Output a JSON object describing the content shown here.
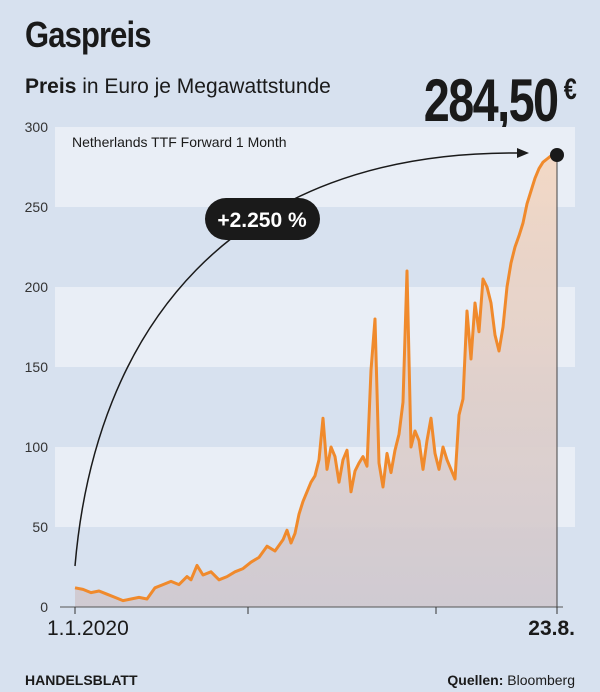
{
  "header": {
    "title": "Gaspreis",
    "subtitle_bold": "Preis",
    "subtitle_rest": "in Euro je Megawattstunde",
    "current_value": "284,50",
    "current_unit": "€"
  },
  "annotation": {
    "series_label": "Netherlands TTF Forward 1 Month",
    "change_badge": "+2.250 %"
  },
  "footer": {
    "publisher": "HANDELSBLATT",
    "sources_label": "Quellen:",
    "sources_value": "Bloomberg"
  },
  "colors": {
    "background": "#d7e1ef",
    "band": "#e9eef6",
    "line": "#f08a2c",
    "area": "#f3d7c3",
    "dark": "#1a1a1a"
  },
  "chart_data": {
    "type": "area",
    "x_labels": [
      "1.1.2020",
      "23.8."
    ],
    "ylim": [
      0,
      300
    ],
    "yticks": [
      0,
      50,
      100,
      150,
      200,
      250,
      300
    ],
    "grid": "alternating horizontal bands",
    "series": [
      {
        "x": [
          0,
          8,
          16,
          24,
          32,
          40,
          48,
          56,
          64,
          72,
          80,
          88,
          96,
          104,
          112,
          116,
          122,
          128,
          136,
          144,
          152,
          160,
          168,
          176,
          184,
          192,
          200,
          208,
          212,
          216,
          220,
          224,
          228,
          232,
          236,
          240,
          244,
          248,
          252,
          256,
          260,
          264,
          268,
          272,
          276,
          280,
          284,
          288,
          292,
          296,
          300,
          304,
          308,
          312,
          316,
          320,
          324,
          328,
          332,
          336,
          340,
          344,
          348,
          352,
          356,
          360,
          364,
          368,
          372,
          376,
          380,
          384,
          388,
          392,
          396,
          400,
          404,
          408,
          412,
          416,
          420,
          424,
          428,
          432,
          436,
          440,
          444,
          448,
          452,
          456,
          460,
          464,
          468,
          472,
          476,
          480,
          482
        ],
        "values": [
          12,
          11,
          9,
          10,
          8,
          6,
          4,
          5,
          6,
          5,
          12,
          14,
          16,
          14,
          19,
          17,
          26,
          20,
          22,
          17,
          19,
          22,
          24,
          28,
          31,
          38,
          35,
          42,
          48,
          40,
          46,
          58,
          66,
          72,
          78,
          82,
          92,
          118,
          86,
          100,
          94,
          78,
          92,
          98,
          72,
          85,
          90,
          94,
          88,
          148,
          180,
          90,
          75,
          96,
          84,
          98,
          108,
          128,
          210,
          100,
          110,
          104,
          86,
          104,
          118,
          96,
          86,
          100,
          92,
          86,
          80,
          120,
          130,
          185,
          155,
          190,
          172,
          205,
          200,
          190,
          170,
          160,
          175,
          200,
          215,
          225,
          232,
          240,
          252,
          260,
          268,
          274,
          278,
          280,
          282,
          284,
          284.5
        ]
      }
    ]
  }
}
